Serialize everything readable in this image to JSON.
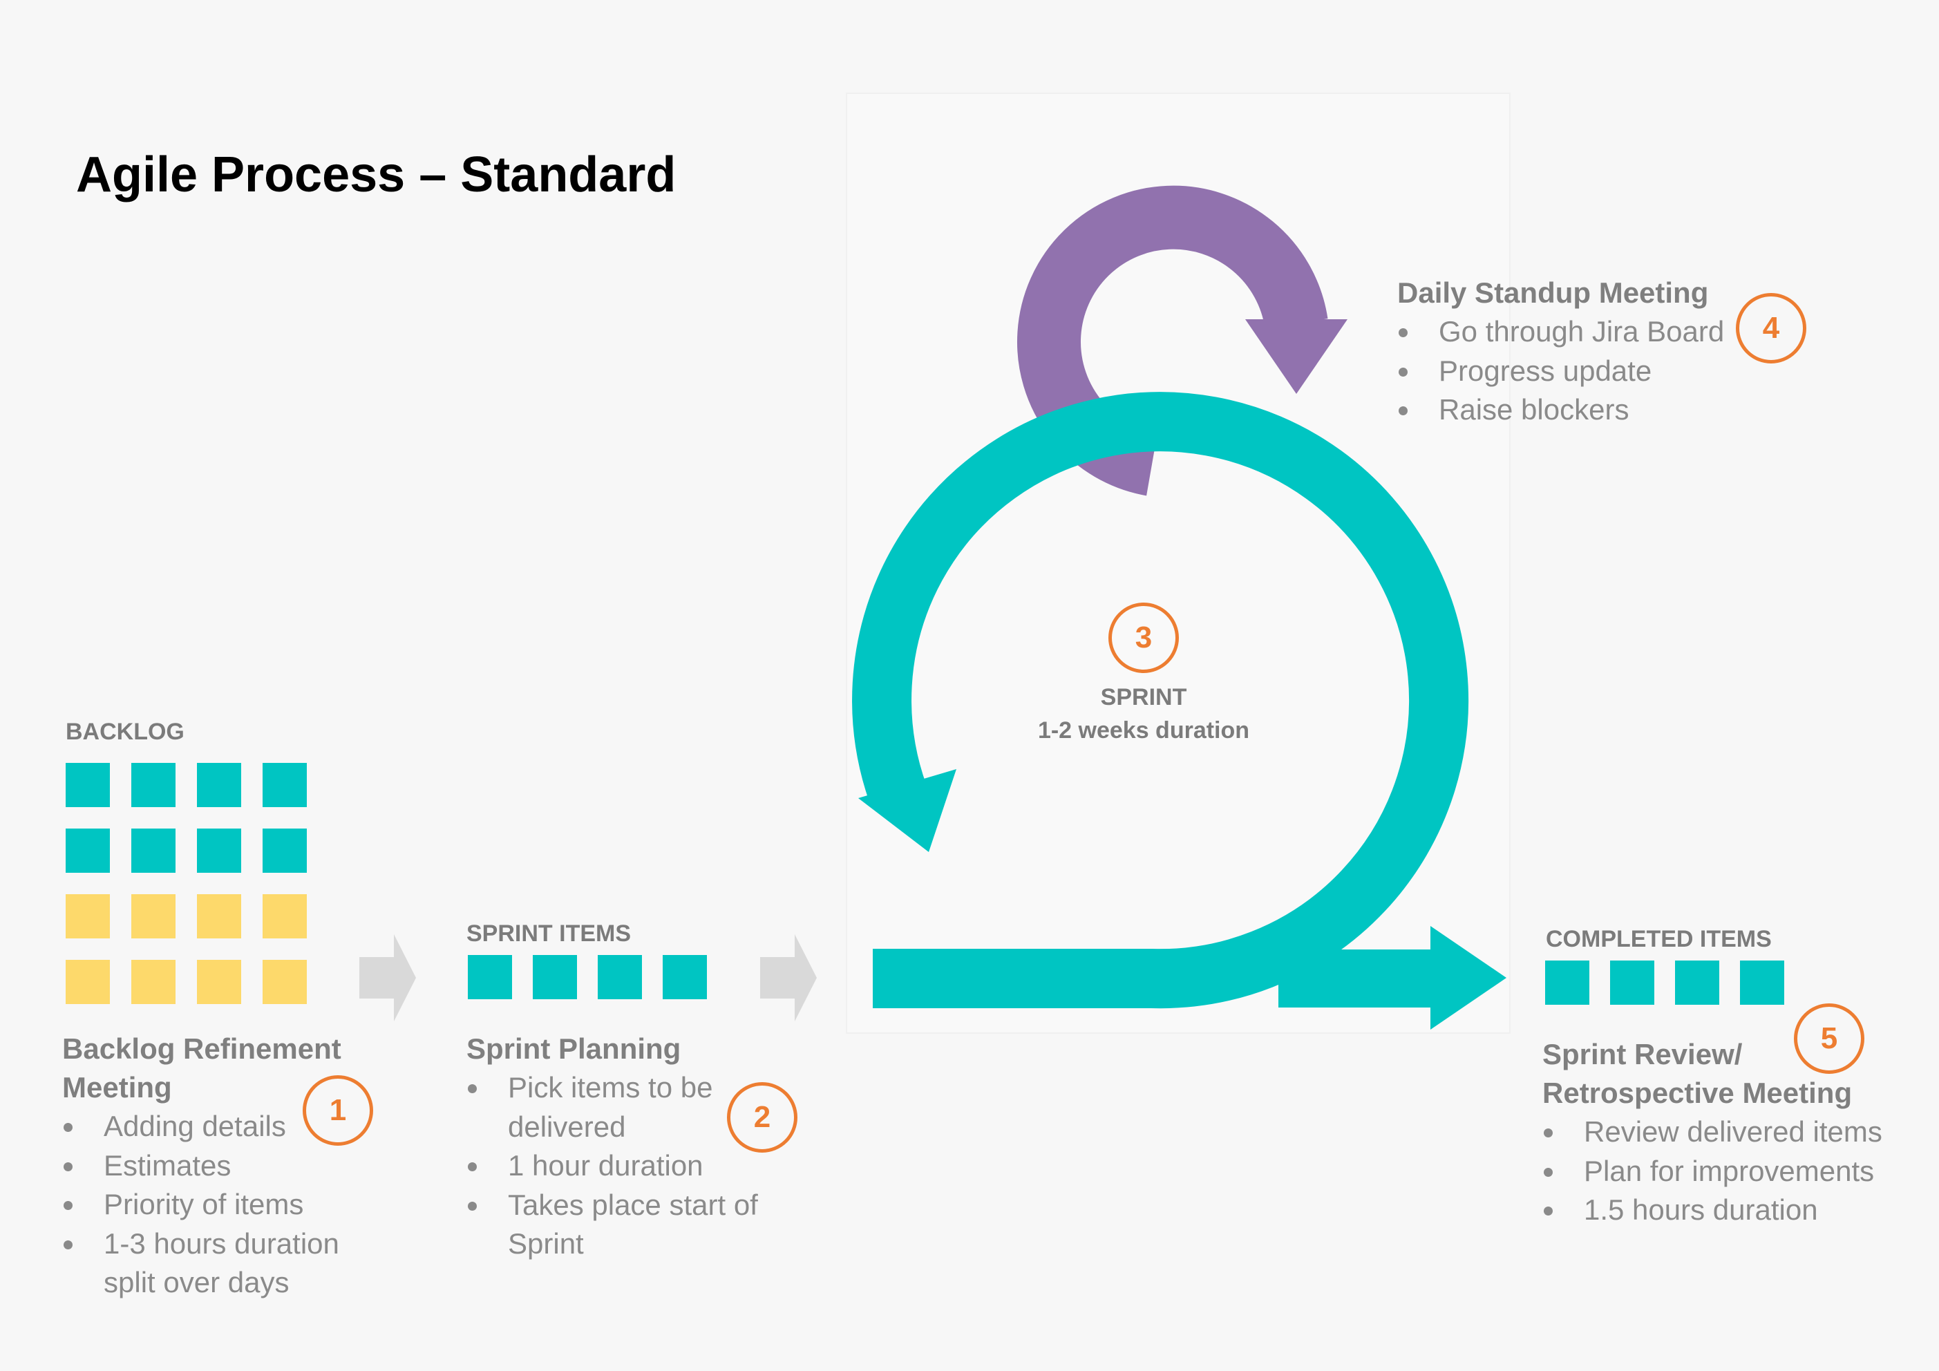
{
  "title": "Agile Process – Standard",
  "colors": {
    "teal": "#00c5c2",
    "purple": "#9172ae",
    "yellow": "#fdd96b",
    "orange": "#ed7d31",
    "grey_arrow": "#d9d9d9",
    "text_grey": "#7f7f7f"
  },
  "backlog": {
    "label": "BACKLOG",
    "items": [
      "teal",
      "teal",
      "teal",
      "teal",
      "teal",
      "teal",
      "teal",
      "teal",
      "yellow",
      "yellow",
      "yellow",
      "yellow",
      "yellow",
      "yellow",
      "yellow",
      "yellow"
    ]
  },
  "sprint_items": {
    "label": "SPRINT ITEMS",
    "count": 4
  },
  "completed_items": {
    "label": "COMPLETED ITEMS",
    "count": 4
  },
  "sprint": {
    "number": "3",
    "label": "SPRINT",
    "duration": "1-2 weeks duration"
  },
  "steps": {
    "refinement": {
      "number": "1",
      "heading_line1": "Backlog Refinement",
      "heading_line2": "Meeting",
      "bullets": [
        "Adding details",
        "Estimates",
        "Priority of items",
        "1-3 hours duration",
        "split over days"
      ]
    },
    "planning": {
      "number": "2",
      "heading": "Sprint Planning",
      "bullets": [
        "Pick items to be",
        "delivered",
        "1 hour duration",
        "Takes place start of",
        "Sprint"
      ]
    },
    "standup": {
      "number": "4",
      "heading": "Daily Standup Meeting",
      "bullets": [
        "Go through Jira Board",
        "Progress update",
        "Raise blockers"
      ]
    },
    "review": {
      "number": "5",
      "heading_line1": "Sprint Review/",
      "heading_line2": "Retrospective Meeting",
      "bullets": [
        "Review delivered items",
        "Plan for improvements",
        "1.5 hours duration"
      ]
    }
  }
}
